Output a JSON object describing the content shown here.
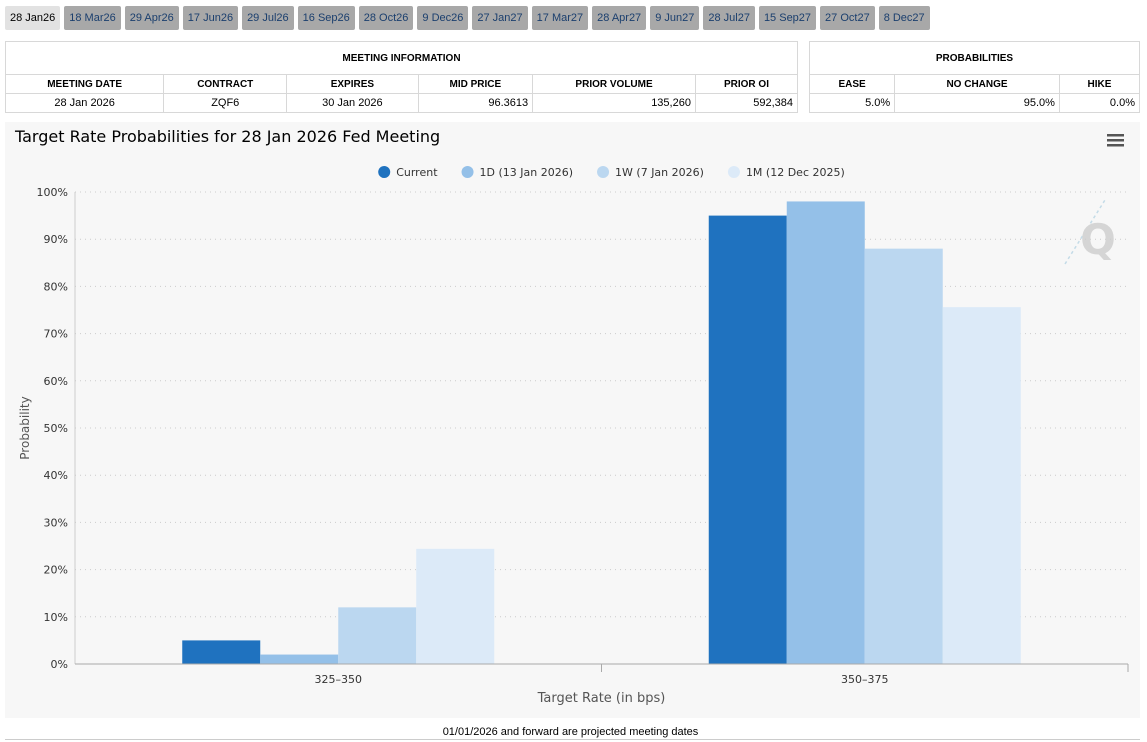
{
  "tabs": [
    "28 Jan26",
    "18 Mar26",
    "29 Apr26",
    "17 Jun26",
    "29 Jul26",
    "16 Sep26",
    "28 Oct26",
    "9 Dec26",
    "27 Jan27",
    "17 Mar27",
    "28 Apr27",
    "9 Jun27",
    "28 Jul27",
    "15 Sep27",
    "27 Oct27",
    "8 Dec27"
  ],
  "meeting_table": {
    "title": "MEETING INFORMATION",
    "headers": [
      "MEETING DATE",
      "CONTRACT",
      "EXPIRES",
      "MID PRICE",
      "PRIOR VOLUME",
      "PRIOR OI"
    ],
    "row": [
      "28 Jan 2026",
      "ZQF6",
      "30 Jan 2026",
      "96.3613",
      "135,260",
      "592,384"
    ]
  },
  "probability_table": {
    "title": "PROBABILITIES",
    "headers": [
      "EASE",
      "NO CHANGE",
      "HIKE"
    ],
    "row": [
      "5.0%",
      "95.0%",
      "0.0%"
    ]
  },
  "chart_data": {
    "type": "bar",
    "title": "Target Rate Probabilities for 28 Jan 2026 Fed Meeting",
    "x_label": "Target Rate (in bps)",
    "y_label": "Probability",
    "categories": [
      "325–350",
      "350–375"
    ],
    "series": [
      {
        "name": "Current",
        "color": "#1f72bf",
        "values": [
          5.0,
          95.0
        ]
      },
      {
        "name": "1D (13 Jan 2026)",
        "color": "#94c0e8",
        "values": [
          2,
          98
        ]
      },
      {
        "name": "1W (7 Jan 2026)",
        "color": "#bbd7f0",
        "values": [
          12,
          88
        ]
      },
      {
        "name": "1M (12 Dec 2025)",
        "color": "#dceaf8",
        "values": [
          24.4,
          75.6
        ]
      }
    ],
    "ylim": [
      0,
      100
    ],
    "yticks": [
      {
        "value": 0,
        "label": "0%"
      },
      {
        "value": 10,
        "label": "10%"
      },
      {
        "value": 20,
        "label": "20%"
      },
      {
        "value": 30,
        "label": "30%"
      },
      {
        "value": 40,
        "label": "40%"
      },
      {
        "value": 50,
        "label": "50%"
      },
      {
        "value": 60,
        "label": "60%"
      },
      {
        "value": 70,
        "label": "70%"
      },
      {
        "value": 80,
        "label": "80%"
      },
      {
        "value": 90,
        "label": "90%"
      },
      {
        "value": 100,
        "label": "100%"
      }
    ],
    "grid": true,
    "legend": "top"
  },
  "footer": "01/01/2026 and forward are projected meeting dates"
}
